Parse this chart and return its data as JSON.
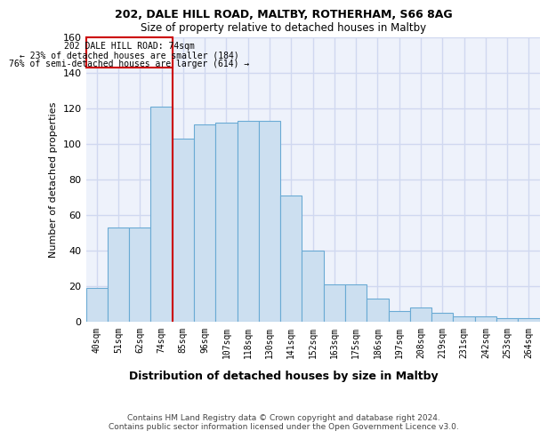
{
  "title1": "202, DALE HILL ROAD, MALTBY, ROTHERHAM, S66 8AG",
  "title2": "Size of property relative to detached houses in Maltby",
  "xlabel": "Distribution of detached houses by size in Maltby",
  "ylabel": "Number of detached properties",
  "categories": [
    "40sqm",
    "51sqm",
    "62sqm",
    "74sqm",
    "85sqm",
    "96sqm",
    "107sqm",
    "118sqm",
    "130sqm",
    "141sqm",
    "152sqm",
    "163sqm",
    "175sqm",
    "186sqm",
    "197sqm",
    "208sqm",
    "219sqm",
    "231sqm",
    "242sqm",
    "253sqm",
    "264sqm"
  ],
  "values": [
    19,
    53,
    53,
    121,
    103,
    111,
    112,
    113,
    113,
    71,
    40,
    21,
    21,
    13,
    6,
    8,
    5,
    3,
    3,
    2,
    2
  ],
  "bar_color": "#ccdff0",
  "bar_edge_color": "#6aaad4",
  "background_color": "#eef2fb",
  "grid_color": "#d0d8f0",
  "property_line_bin_index": 3,
  "annotation_title": "202 DALE HILL ROAD: 74sqm",
  "annotation_line1": "← 23% of detached houses are smaller (184)",
  "annotation_line2": "76% of semi-detached houses are larger (614) →",
  "annotation_box_color": "#ffffff",
  "annotation_box_edge": "#cc0000",
  "red_line_color": "#cc0000",
  "ylim": [
    0,
    160
  ],
  "yticks": [
    0,
    20,
    40,
    60,
    80,
    100,
    120,
    140,
    160
  ],
  "footer1": "Contains HM Land Registry data © Crown copyright and database right 2024.",
  "footer2": "Contains public sector information licensed under the Open Government Licence v3.0."
}
